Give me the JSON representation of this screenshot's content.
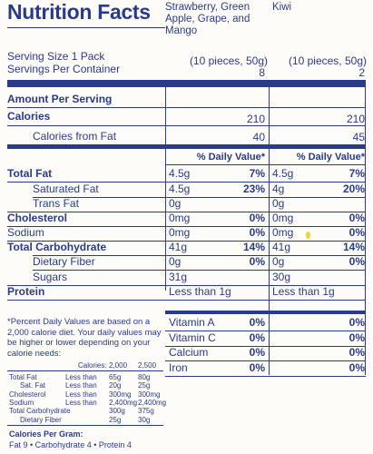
{
  "header": {
    "title": "Nutrition Facts",
    "product1": "Strawberry, Green Apple, Grape, and Mango",
    "product2": "Kiwi"
  },
  "serving": {
    "size_label": "Serving Size 1 Pack",
    "per_container_label": "Servings Per Container",
    "size_p1": "(10 pieces, 50g)",
    "size_p2": "(10 pieces, 50g)",
    "count_p1": "8",
    "count_p2": "2"
  },
  "amount_header": "Amount Per Serving",
  "calories": {
    "label": "Calories",
    "p1": "210",
    "p2": "210"
  },
  "calories_fat": {
    "label": "Calories from Fat",
    "p1": "40",
    "p2": "45"
  },
  "dv_header": {
    "p1": "% Daily Value*",
    "p2": "% Daily Value*"
  },
  "nutrients": [
    {
      "label": "Total Fat",
      "p1_amount": "4.5g",
      "p1_dv": "7%",
      "p2_amount": "4.5g",
      "p2_dv": "7%"
    },
    {
      "label": "Saturated Fat",
      "p1_amount": "4.5g",
      "p1_dv": "23%",
      "p2_amount": "4g",
      "p2_dv": "20%"
    },
    {
      "label": "Trans Fat",
      "p1_amount": "0g",
      "p1_dv": "",
      "p2_amount": "0g",
      "p2_dv": ""
    },
    {
      "label": "Cholesterol",
      "p1_amount": "0mg",
      "p1_dv": "0%",
      "p2_amount": "0mg",
      "p2_dv": "0%"
    },
    {
      "label": "Sodium",
      "p1_amount": "0mg",
      "p1_dv": "0%",
      "p2_amount": "0mg",
      "p2_dv": "0%"
    },
    {
      "label": "Total Carbohydrate",
      "p1_amount": "41g",
      "p1_dv": "14%",
      "p2_amount": "41g",
      "p2_dv": "14%"
    },
    {
      "label": "Dietary Fiber",
      "p1_amount": "0g",
      "p1_dv": "0%",
      "p2_amount": "0g",
      "p2_dv": "0%"
    },
    {
      "label": "Sugars",
      "p1_amount": "31g",
      "p1_dv": "",
      "p2_amount": "30g",
      "p2_dv": ""
    },
    {
      "label": "Protein",
      "p1_amount": "Less than 1g",
      "p1_dv": "",
      "p2_amount": "Less than 1g",
      "p2_dv": ""
    }
  ],
  "vitamins": [
    {
      "label": "Vitamin A",
      "p1": "0%",
      "p2": "0%"
    },
    {
      "label": "Vitamin C",
      "p1": "0%",
      "p2": "0%"
    },
    {
      "label": "Calcium",
      "p1": "0%",
      "p2": "0%"
    },
    {
      "label": "Iron",
      "p1": "0%",
      "p2": "0%"
    }
  ],
  "footnote": {
    "text": "*Percent Daily Values are based on a 2,000 calorie diet. Your daily values may be higher or lower depending on your calorie needs:",
    "table": {
      "header": [
        "Calories:",
        "2,000",
        "2,500"
      ],
      "rows": [
        [
          "Total Fat",
          "Less than",
          "65g",
          "80g"
        ],
        [
          "Sat. Fat",
          "Less than",
          "20g",
          "25g"
        ],
        [
          "Cholesterol",
          "Less than",
          "300mg",
          "300mg"
        ],
        [
          "Sodium",
          "Less than",
          "2,400mg",
          "2,400mg"
        ],
        [
          "Total Carbohydrate",
          "",
          "300g",
          "375g"
        ],
        [
          "Dietary Fiber",
          "",
          "25g",
          "30g"
        ]
      ]
    },
    "cal_per_gram_label": "Calories Per Gram:",
    "cal_per_gram_values": "Fat 9  •  Carbohydrate 4  •  Protein 4"
  }
}
